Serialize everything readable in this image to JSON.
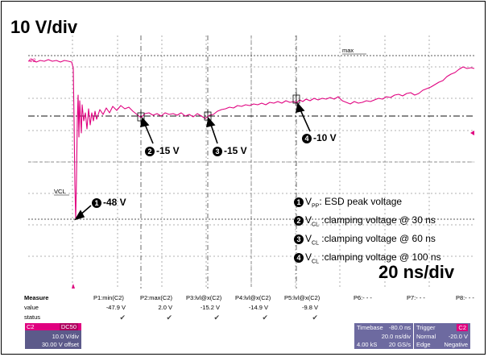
{
  "header": {
    "volts_per_div": "10 V/div",
    "time_per_div": "20 ns/div"
  },
  "scope": {
    "channel_tag": "C2",
    "max_marker": "max",
    "vcl_marker": "VCL",
    "trace_color": "#e0007f",
    "grid_color": "#999999"
  },
  "annotations": [
    {
      "num": "1",
      "text": "-48 V"
    },
    {
      "num": "2",
      "text": "-15 V"
    },
    {
      "num": "3",
      "text": "-15 V"
    },
    {
      "num": "4",
      "text": "-10 V"
    }
  ],
  "legend": [
    {
      "num": "1",
      "symbol": "V",
      "sub": "PP",
      "text": ": ESD peak voltage"
    },
    {
      "num": "2",
      "symbol": "V",
      "sub": "CL",
      "text": " :clamping voltage @ 30 ns"
    },
    {
      "num": "3",
      "symbol": "V",
      "sub": "CL",
      "text": " :clamping voltage @ 60 ns"
    },
    {
      "num": "4",
      "symbol": "V",
      "sub": "CL",
      "text": " :clamping voltage @ 100 ns"
    }
  ],
  "measure": {
    "title": "Measure",
    "row_labels": [
      "value",
      "status"
    ],
    "params": [
      {
        "name": "P1:min(C2)",
        "value": "-47.9 V",
        "status": "✔"
      },
      {
        "name": "P2:max(C2)",
        "value": "2.0 V",
        "status": "✔"
      },
      {
        "name": "P3:lvl@x(C2)",
        "value": "-15.2 V",
        "status": "✔"
      },
      {
        "name": "P4:lvl@x(C2)",
        "value": "-14.9 V",
        "status": "✔"
      },
      {
        "name": "P5:lvl@x(C2)",
        "value": "-9.8 V",
        "status": "✔"
      },
      {
        "name": "P6:- - -",
        "value": "",
        "status": ""
      },
      {
        "name": "P7:- - -",
        "value": "",
        "status": ""
      },
      {
        "name": "P8:- - -",
        "value": "",
        "status": ""
      }
    ]
  },
  "channel_box": {
    "tag": "C2",
    "tag_right": "DC50",
    "line1": "10.0 V/div",
    "line2": "30.00 V offset"
  },
  "timebase_box": {
    "label": "Timebase",
    "delay": "-80.0 ns",
    "line2": "20.0 ns/div",
    "line3_left": "4.00 kS",
    "line3_right": "20 GS/s"
  },
  "trigger_box": {
    "label": "Trigger",
    "tag": "C2",
    "line2_left": "Normal",
    "line2_right": "-20.0 V",
    "line3_left": "Edge",
    "line3_right": "Negative"
  }
}
